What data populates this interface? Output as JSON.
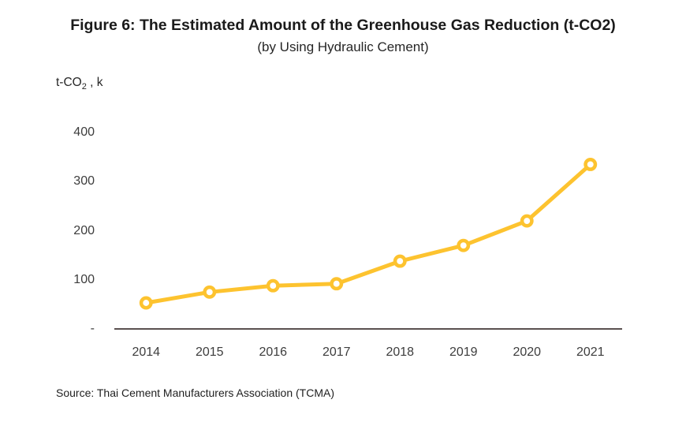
{
  "chart_data": {
    "type": "line",
    "title": "Figure 6: The Estimated Amount of the Greenhouse Gas Reduction (t-CO2)",
    "subtitle": "(by Using Hydraulic Cement)",
    "y_unit": {
      "prefix": "t-CO",
      "sub": "2",
      "suffix": " , k"
    },
    "categories": [
      "2014",
      "2015",
      "2016",
      "2017",
      "2018",
      "2019",
      "2020",
      "2021"
    ],
    "values": [
      53,
      75,
      88,
      92,
      138,
      170,
      220,
      335
    ],
    "ylim": [
      0,
      400
    ],
    "y_ticks": [
      {
        "label": "400",
        "value": 400
      },
      {
        "label": "300",
        "value": 300
      },
      {
        "label": "200",
        "value": 200
      },
      {
        "label": "100",
        "value": 100
      },
      {
        "label": "-",
        "value": 0
      }
    ],
    "grid": false,
    "legend": "none",
    "colors": {
      "line": "#FDC32F",
      "marker_fill": "#FFFFFF",
      "axis": "#5A5150"
    },
    "source": "Source: Thai Cement Manufacturers Association (TCMA)"
  }
}
